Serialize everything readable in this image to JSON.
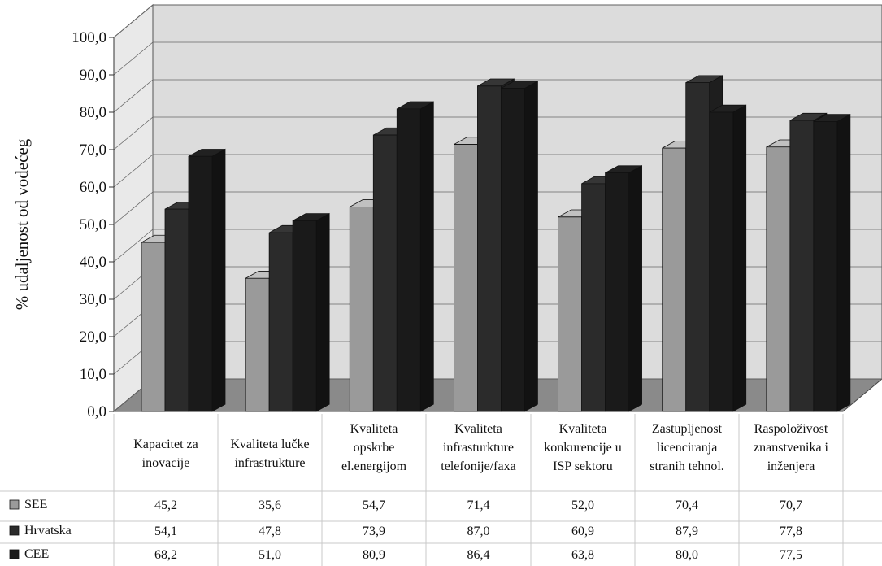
{
  "chart_data": {
    "type": "bar",
    "ylabel": "% udaljenost od vodećeg",
    "ylim": [
      0,
      100
    ],
    "yticks": [
      "0,0",
      "10,0",
      "20,0",
      "30,0",
      "40,0",
      "50,0",
      "60,0",
      "70,0",
      "80,0",
      "90,0",
      "100,0"
    ],
    "categories": [
      [
        "Kapacitet za",
        "inovacije"
      ],
      [
        "Kvaliteta lučke",
        "infrastrukture"
      ],
      [
        "Kvaliteta",
        "opskrbe",
        "el.energijom"
      ],
      [
        "Kvaliteta",
        "infrasturkture",
        "telefonije/faxa"
      ],
      [
        "Kvaliteta",
        "konkurencije u",
        "ISP sektoru"
      ],
      [
        "Zastupljenost",
        "licenciranja",
        "stranih tehnol."
      ],
      [
        "Raspoloživost",
        "znanstvenika i",
        "inženjera"
      ]
    ],
    "series": [
      {
        "name": "SEE",
        "values": [
          45.2,
          35.6,
          54.7,
          71.4,
          52.0,
          70.4,
          70.7
        ],
        "labels": [
          "45,2",
          "35,6",
          "54,7",
          "71,4",
          "52,0",
          "70,4",
          "70,7"
        ],
        "color": "#9a9a9a"
      },
      {
        "name": "Hrvatska",
        "values": [
          54.1,
          47.8,
          73.9,
          87.0,
          60.9,
          87.9,
          77.8
        ],
        "labels": [
          "54,1",
          "47,8",
          "73,9",
          "87,0",
          "60,9",
          "87,9",
          "77,8"
        ],
        "color": "#2b2b2b"
      },
      {
        "name": "CEE",
        "values": [
          68.2,
          51.0,
          80.9,
          86.4,
          63.8,
          80.0,
          77.5
        ],
        "labels": [
          "68,2",
          "51,0",
          "80,9",
          "86,4",
          "63,8",
          "80,0",
          "77,5"
        ],
        "color": "#1a1a1a"
      }
    ],
    "grid": true,
    "legend": "data-table"
  }
}
